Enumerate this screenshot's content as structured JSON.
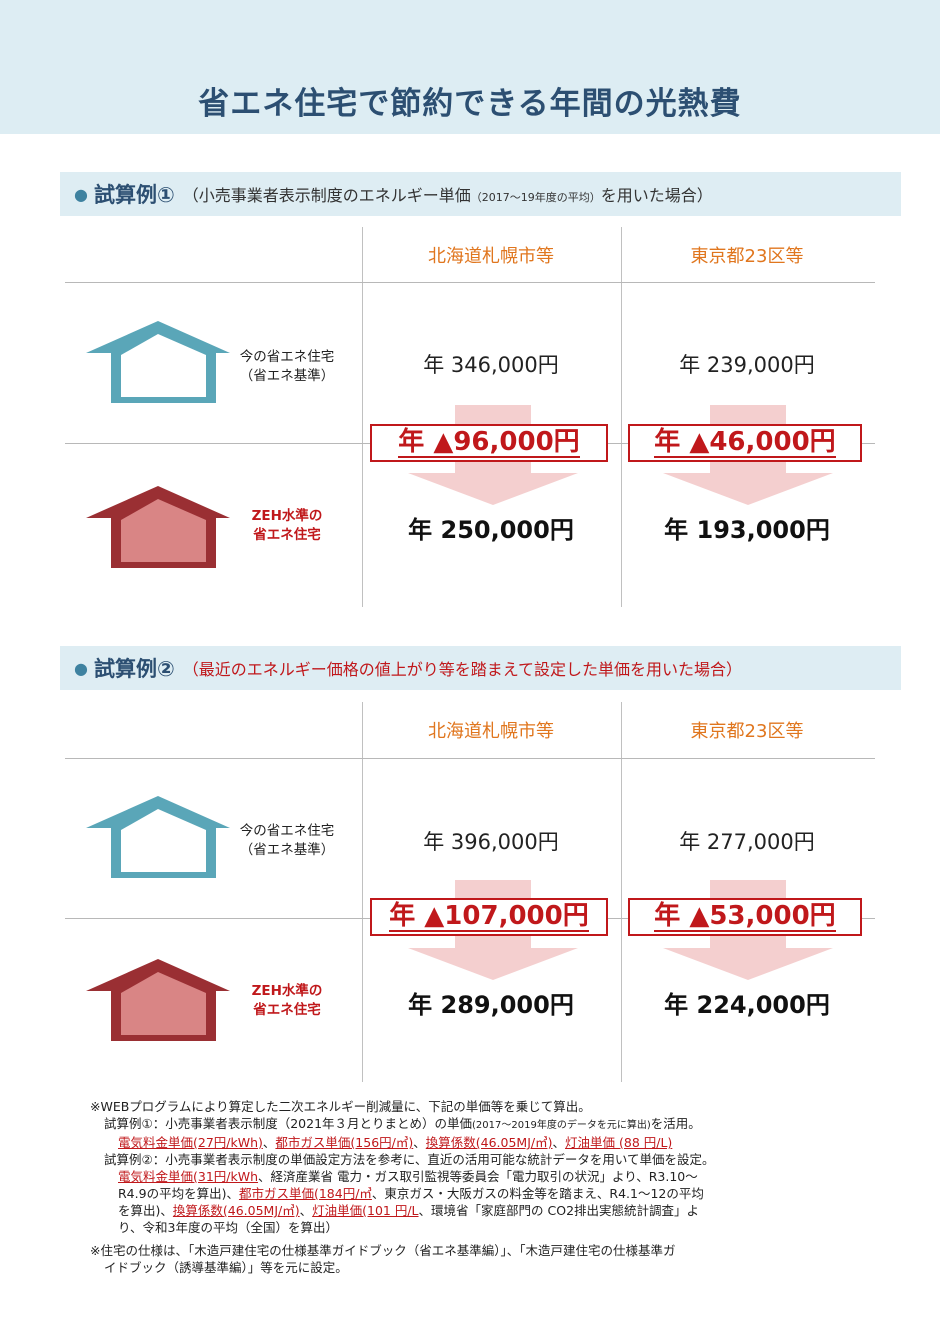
{
  "title": "省エネ住宅で節約できる年間の光熱費",
  "cases": [
    {
      "label": "試算例①",
      "desc_open": "（小売事業者表示制度のエネルギー単価",
      "desc_small": "（2017～19年度の平均）",
      "desc_close": "を用いた場合）",
      "cities": [
        "北海道札幌市等",
        "東京都23区等"
      ],
      "current_house": [
        "今の省エネ住宅",
        "（省エネ基準）"
      ],
      "zeh_house": [
        "ZEH水準の",
        "省エネ住宅"
      ],
      "current_costs": [
        "年 346,000円",
        "年 239,000円"
      ],
      "savings": [
        "年 ▲96,000円",
        "年 ▲46,000円"
      ],
      "zeh_costs": [
        "年 250,000円",
        "年 193,000円"
      ]
    },
    {
      "label": "試算例②",
      "desc_open": "（最近のエネルギー価格の値上がり等を踏まえて設定した単価を用いた場合）",
      "desc_small": "",
      "desc_close": "",
      "cities": [
        "北海道札幌市等",
        "東京都23区等"
      ],
      "current_house": [
        "今の省エネ住宅",
        "（省エネ基準）"
      ],
      "zeh_house": [
        "ZEH水準の",
        "省エネ住宅"
      ],
      "current_costs": [
        "年 396,000円",
        "年 277,000円"
      ],
      "savings": [
        "年 ▲107,000円",
        "年 ▲53,000円"
      ],
      "zeh_costs": [
        "年 289,000円",
        "年 224,000円"
      ]
    }
  ],
  "notes": {
    "intro": "※WEBプログラムにより算定した二次エネルギー削減量に、下記の単価等を乗じて算出。",
    "case1_a": "試算例①：小売事業者表示制度（2021年３月とりまとめ）の単価",
    "case1_small": "(2017～2019年度のデータを元に算出)",
    "case1_b": "を活用。",
    "case1_u1": "電気料金単価(27円/kWh)",
    "case1_u2": "都市ガス単価(156円/㎥)",
    "case1_u3": "換算係数(46.05MJ/㎥)",
    "case1_u4": "灯油単価 (88 円/L)",
    "sep": "、",
    "case2_a": "試算例②：小売事業者表示制度の単価設定方法を参考に、直近の活用可能な統計データを用いて単価を設定。",
    "case2_u1": "電気料金単価(31円/kWh",
    "case2_b": "、経済産業省 電力・ガス取引監視等委員会「電力取引の状況」より、R3.10～",
    "case2_c": "R4.9の平均を算出)、",
    "case2_u2": "都市ガス単価(184円/㎥",
    "case2_d": "、東京ガス・大阪ガスの料金等を踏まえ、R4.1～12の平均",
    "case2_e": "を算出)、",
    "case2_u3": "換算係数(46.05MJ/㎥)",
    "case2_u4": "灯油単価(101 円/L",
    "case2_f": "、環境省「家庭部門の CO2排出実態統計調査」よ",
    "case2_g": "り、令和3年度の平均（全国）を算出）",
    "spec1": "※住宅の仕様は、「木造戸建住宅の仕様基準ガイドブック（省エネ基準編）」、「木造戸建住宅の仕様基準ガ",
    "spec2": "イドブック（誘導基準編）」等を元に設定。"
  },
  "colors": {
    "title": "#2c4f72",
    "city": "#e0761e",
    "saving_red": "#c0181b",
    "house_blue": "#5aa6b8",
    "house_red": "#d98585"
  },
  "icons": [
    "house-outline-icon",
    "house-zeh-icon",
    "down-arrow-icon"
  ]
}
